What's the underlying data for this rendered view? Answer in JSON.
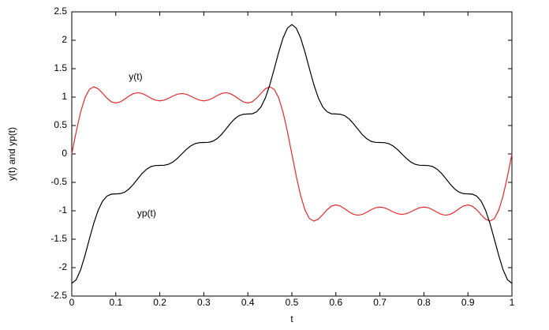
{
  "chart_data": {
    "type": "line",
    "xlabel": "t",
    "ylabel": "y(t) and yp(t)",
    "xlim": [
      0,
      1
    ],
    "ylim": [
      -2.5,
      2.5
    ],
    "xticks": [
      0,
      0.1,
      0.2,
      0.3,
      0.4,
      0.5,
      0.6,
      0.7,
      0.8,
      0.9,
      1
    ],
    "yticks": [
      -2.5,
      -2,
      -1.5,
      -1,
      -0.5,
      0,
      0.5,
      1,
      1.5,
      2,
      2.5
    ],
    "x": [
      0,
      0.01,
      0.02,
      0.03,
      0.04,
      0.05,
      0.06,
      0.07,
      0.08,
      0.09,
      0.1,
      0.11,
      0.12,
      0.13,
      0.14,
      0.15,
      0.16,
      0.17,
      0.18,
      0.19,
      0.2,
      0.21,
      0.22,
      0.23,
      0.24,
      0.25,
      0.26,
      0.27,
      0.28,
      0.29,
      0.3,
      0.31,
      0.32,
      0.33,
      0.34,
      0.35,
      0.36,
      0.37,
      0.38,
      0.39,
      0.4,
      0.41,
      0.42,
      0.43,
      0.44,
      0.45,
      0.46,
      0.47,
      0.48,
      0.49,
      0.5,
      0.51,
      0.52,
      0.53,
      0.54,
      0.55,
      0.56,
      0.57,
      0.58,
      0.59,
      0.6,
      0.61,
      0.62,
      0.63,
      0.64,
      0.65,
      0.66,
      0.67,
      0.68,
      0.69,
      0.7,
      0.71,
      0.72,
      0.73,
      0.74,
      0.75,
      0.76,
      0.77,
      0.78,
      0.79,
      0.8,
      0.81,
      0.82,
      0.83,
      0.84,
      0.85,
      0.86,
      0.87,
      0.88,
      0.89,
      0.9,
      0.91,
      0.92,
      0.93,
      0.94,
      0.95,
      0.96,
      0.97,
      0.98,
      0.99,
      1
    ],
    "series": [
      {
        "name": "y(t)",
        "color": "#e8282a",
        "values": [
          0,
          0.391,
          0.734,
          0.989,
          1.137,
          1.182,
          1.147,
          1.068,
          0.981,
          0.918,
          0.896,
          0.915,
          0.963,
          1.019,
          1.062,
          1.077,
          1.063,
          1.026,
          0.981,
          0.947,
          0.934,
          0.947,
          0.979,
          1.019,
          1.051,
          1.063,
          1.051,
          1.019,
          0.979,
          0.947,
          0.934,
          0.947,
          0.981,
          1.026,
          1.063,
          1.077,
          1.062,
          1.019,
          0.963,
          0.915,
          0.896,
          0.918,
          0.981,
          1.068,
          1.147,
          1.182,
          1.137,
          0.989,
          0.734,
          0.391,
          0,
          -0.391,
          -0.734,
          -0.989,
          -1.137,
          -1.182,
          -1.147,
          -1.068,
          -0.981,
          -0.918,
          -0.896,
          -0.915,
          -0.963,
          -1.019,
          -1.062,
          -1.077,
          -1.063,
          -1.026,
          -0.981,
          -0.947,
          -0.934,
          -0.947,
          -0.979,
          -1.019,
          -1.051,
          -1.063,
          -1.051,
          -1.019,
          -0.979,
          -0.947,
          -0.934,
          -0.947,
          -0.981,
          -1.026,
          -1.063,
          -1.077,
          -1.062,
          -1.019,
          -0.963,
          -0.915,
          -0.896,
          -0.918,
          -0.981,
          -1.068,
          -1.147,
          -1.182,
          -1.137,
          -0.989,
          -0.734,
          -0.391,
          0
        ]
      },
      {
        "name": "yp(t)",
        "color": "#000000",
        "values": [
          -2.276,
          -2.214,
          -2.04,
          -1.786,
          -1.497,
          -1.219,
          -0.989,
          -0.829,
          -0.741,
          -0.707,
          -0.703,
          -0.698,
          -0.673,
          -0.617,
          -0.533,
          -0.435,
          -0.341,
          -0.268,
          -0.222,
          -0.204,
          -0.201,
          -0.199,
          -0.181,
          -0.141,
          -0.077,
          0,
          0.077,
          0.141,
          0.181,
          0.199,
          0.201,
          0.204,
          0.222,
          0.268,
          0.341,
          0.435,
          0.533,
          0.617,
          0.673,
          0.698,
          0.703,
          0.707,
          0.741,
          0.829,
          0.989,
          1.219,
          1.497,
          1.786,
          2.04,
          2.214,
          2.276,
          2.214,
          2.04,
          1.786,
          1.497,
          1.219,
          0.989,
          0.829,
          0.741,
          0.707,
          0.703,
          0.698,
          0.673,
          0.617,
          0.533,
          0.435,
          0.341,
          0.268,
          0.222,
          0.204,
          0.201,
          0.199,
          0.181,
          0.141,
          0.077,
          0,
          -0.077,
          -0.141,
          -0.181,
          -0.199,
          -0.201,
          -0.204,
          -0.222,
          -0.268,
          -0.341,
          -0.435,
          -0.533,
          -0.617,
          -0.673,
          -0.698,
          -0.703,
          -0.707,
          -0.741,
          -0.829,
          -0.989,
          -1.219,
          -1.497,
          -1.786,
          -2.04,
          -2.214,
          -2.276
        ]
      }
    ]
  }
}
